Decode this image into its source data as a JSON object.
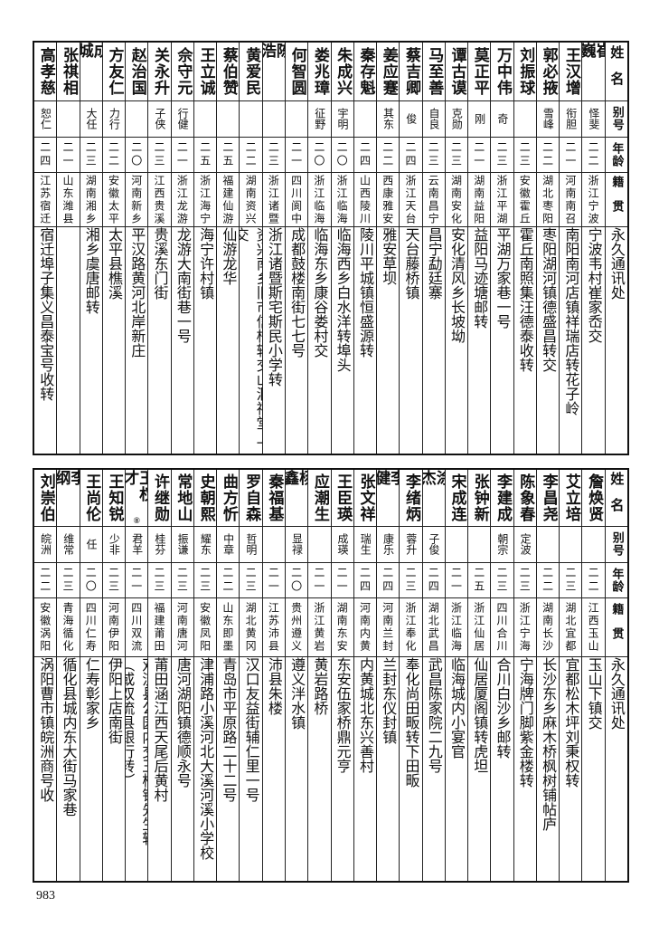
{
  "header": {
    "name": "姓名",
    "alias": "别号",
    "age": "年龄",
    "origin": "籍贯",
    "address": "永久通讯处"
  },
  "upper": [
    {
      "name": "崔巍",
      "alias": "怿斐",
      "age": "二二",
      "origin": "浙江宁波",
      "address": "宁波韦村崔家岙交"
    },
    {
      "name": "王汉增",
      "alias": "衔胆",
      "age": "二一",
      "origin": "河南南召",
      "address": "南阳南河店镇祥瑞店转花子岭"
    },
    {
      "name": "郭必掖",
      "alias": "雪峰",
      "age": "二二",
      "origin": "湖北枣阳",
      "address": "枣阳湖河镇德盛昌转交"
    },
    {
      "name": "刘振球",
      "alias": "",
      "age": "二三",
      "origin": "安徽霍丘",
      "address": "霍丘南照集汪德泰收转"
    },
    {
      "name": "万中伟",
      "alias": "奇",
      "age": "二三",
      "origin": "浙江平湖",
      "address": "平湖万家巷一号"
    },
    {
      "name": "莫正平",
      "alias": "刚",
      "age": "二一",
      "origin": "湖南益阳",
      "address": "益阳马迹塘邮转"
    },
    {
      "name": "谭古谟",
      "alias": "克勋",
      "age": "二三",
      "origin": "湖南安化",
      "address": "安化清风乡长坡坳"
    },
    {
      "name": "马至善",
      "alias": "自良",
      "age": "二三",
      "origin": "云南昌宁",
      "address": "昌宁勐廷寨"
    },
    {
      "name": "蔡吉卿",
      "alias": "俊",
      "age": "二四",
      "origin": "浙江天台",
      "address": "天台藤桥镇"
    },
    {
      "name": "姜应蹇",
      "alias": "其东",
      "age": "二二",
      "origin": "西康雅安",
      "address": "雅安草坝"
    },
    {
      "name": "秦存魁",
      "alias": "",
      "age": "二四",
      "origin": "山西陵川",
      "address": "陵川平城镇恒盛源转"
    },
    {
      "name": "朱成兴",
      "alias": "宇明",
      "age": "二〇",
      "origin": "浙江临海",
      "address": "临海西乡白水洋转埠头"
    },
    {
      "name": "娄兆璋",
      "alias": "征野",
      "age": "二〇",
      "origin": "浙江临海",
      "address": "临海东乡康谷娄村交"
    },
    {
      "name": "何智圆",
      "alias": "",
      "age": "二一",
      "origin": "四川阆中",
      "address": "成都鼓楼南街七七号"
    },
    {
      "name": "陈浩",
      "alias": "",
      "age": "二三",
      "origin": "浙江诸暨",
      "address": "浙江诸暨斯宅斯民小学转"
    },
    {
      "name": "黄爱民",
      "alias": "",
      "age": "二二",
      "origin": "湖南资兴",
      "address": "资兴南乡旧市信柜转交山洞祠堂上交"
    },
    {
      "name": "蔡伯赞",
      "alias": "",
      "age": "二五",
      "origin": "福建仙游",
      "address": "仙游龙华"
    },
    {
      "name": "王立诚",
      "alias": "",
      "age": "二五",
      "origin": "浙江海宁",
      "address": "海宁许村镇"
    },
    {
      "name": "佘守元",
      "alias": "行健",
      "age": "二一",
      "origin": "浙江龙游",
      "address": "龙游大南街巷一号"
    },
    {
      "name": "关永升",
      "alias": "子侠",
      "age": "二三",
      "origin": "江西贵溪",
      "address": "贵溪东门街"
    },
    {
      "name": "赵治国",
      "alias": "",
      "age": "二〇",
      "origin": "河南新乡",
      "address": "平汉路黄河北岸新庄"
    },
    {
      "name": "方友仁",
      "alias": "力行",
      "age": "二二",
      "origin": "安徽太平",
      "address": "太平县樵溪"
    },
    {
      "name": "成城",
      "alias": "大任",
      "age": "二三",
      "origin": "湖南湘乡",
      "address": "湘乡虞唐邮转"
    },
    {
      "name": "张祺相",
      "alias": "",
      "age": "二一",
      "origin": "山东潍县",
      "address": ""
    },
    {
      "name": "高孝慈",
      "alias": "恕仁",
      "age": "二四",
      "origin": "江苏宿迁",
      "address": "宿迁埠子集义昌泰宝号收转"
    }
  ],
  "lower": [
    {
      "name": "詹焕贤",
      "alias": "",
      "age": "二二",
      "origin": "江西玉山",
      "address": "玉山下镇交"
    },
    {
      "name": "艾立培",
      "alias": "",
      "age": "二三",
      "origin": "湖北宜都",
      "address": "宜都松木坪刘秉权转"
    },
    {
      "name": "李昌尧",
      "alias": "",
      "age": "二二",
      "origin": "湖南长沙",
      "address": "长沙东乡麻木桥枫树铺帖庐"
    },
    {
      "name": "陈象春",
      "alias": "定波",
      "age": "二三",
      "origin": "浙江宁海",
      "address": "宁海牌门脚紫金楼转"
    },
    {
      "name": "李建成",
      "alias": "朝宗",
      "age": "二三",
      "origin": "四川合川",
      "address": "合川白沙乡邮转"
    },
    {
      "name": "张钟新",
      "alias": "",
      "age": "二五",
      "origin": "浙江仙居",
      "address": "仙居厦阁镇转虎坦"
    },
    {
      "name": "宋成连",
      "alias": "",
      "age": "二一",
      "origin": "浙江临海",
      "address": "临海城内小宴官"
    },
    {
      "name": "涂杰",
      "alias": "子俊",
      "age": "二四",
      "origin": "湖北武昌",
      "address": "武昌陈家院二九号"
    },
    {
      "name": "李绪炳",
      "alias": "蓉升",
      "age": "二三",
      "origin": "浙江奉化",
      "address": "奉化尚田畈转下田畈"
    },
    {
      "name": "李健",
      "alias": "康乐",
      "age": "二四",
      "origin": "河南兰封",
      "address": "兰封东仪封镇"
    },
    {
      "name": "张文祥",
      "alias": "瑞生",
      "age": "二四",
      "origin": "河南内黄",
      "address": "内黄城北东兴善村"
    },
    {
      "name": "王臣瑛",
      "alias": "成瑛",
      "age": "二一",
      "origin": "湖南东安",
      "address": "东安伍家桥鼎元亨"
    },
    {
      "name": "应潮生",
      "alias": "",
      "age": "二一",
      "origin": "浙江黄岩",
      "address": "黄岩路桥"
    },
    {
      "name": "杨鑫",
      "alias": "显禄",
      "age": "二〇",
      "origin": "贵州遵义",
      "address": "遵义泮水镇"
    },
    {
      "name": "秦福基",
      "alias": "",
      "age": "二一",
      "origin": "江苏沛县",
      "address": "沛县朱楼"
    },
    {
      "name": "罗自森",
      "alias": "哲明",
      "age": "二三",
      "origin": "湖北黄冈",
      "address": "汉口友益街辅仁里一号"
    },
    {
      "name": "曲方忻",
      "alias": "中章",
      "age": "二二",
      "origin": "山东即墨",
      "address": "青岛市平原路二十二号"
    },
    {
      "name": "史朝熙",
      "alias": "耀东",
      "age": "二三",
      "origin": "安徽凤阳",
      "address": "津浦路小溪河北大溪河溪小学校"
    },
    {
      "name": "常地山",
      "alias": "振谦",
      "age": "二三",
      "origin": "河南唐河",
      "address": "唐河湖阳镇德顺永号"
    },
    {
      "name": "许继勋",
      "alias": "桂芬",
      "age": "二三",
      "origin": "福建莆田",
      "address": "莆田涵江西天尾后黄村"
    },
    {
      "name": "王权才",
      "footnote": "⑧",
      "alias": "君羊",
      "age": "二一",
      "origin": "四川双流",
      "address": "双流县公园内交王柏铭先生转",
      "address_note": "（或双流县银行转）"
    },
    {
      "name": "王知锐",
      "alias": "少非",
      "age": "二三",
      "origin": "河南伊阳",
      "address": "伊阳上店南街"
    },
    {
      "name": "王尚伦",
      "alias": "任",
      "age": "二〇",
      "origin": "四川仁寿",
      "address": "仁寿彰家乡"
    },
    {
      "name": "李纲",
      "alias": "维常",
      "age": "二三",
      "origin": "青海循化",
      "address": "循化县城内东大街马家巷"
    },
    {
      "name": "刘崇伯",
      "alias": "皖洲",
      "age": "二二",
      "origin": "安徽涡阳",
      "address": "涡阳曹市镇皖洲商号收"
    }
  ],
  "page_number": "983"
}
